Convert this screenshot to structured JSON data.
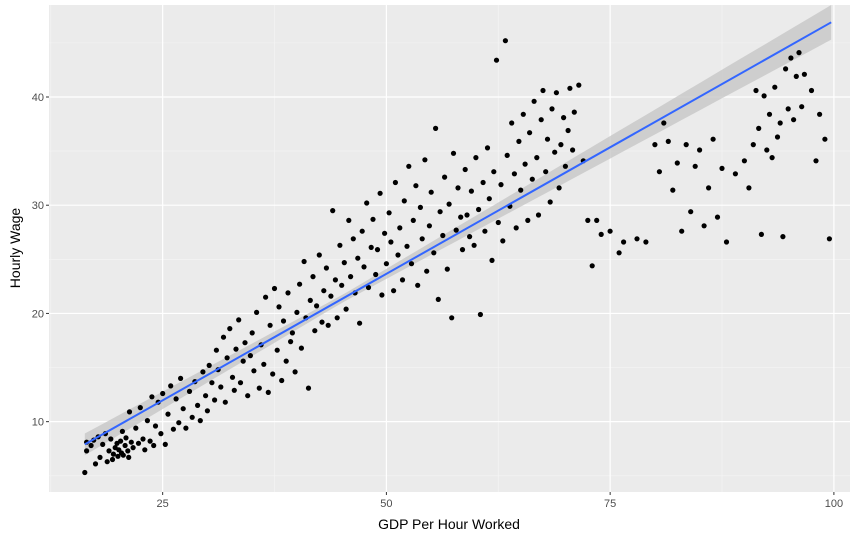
{
  "chart_data": {
    "type": "scatter",
    "title": "",
    "xlabel": "GDP Per Hour Worked",
    "ylabel": "Hourly Wage",
    "xlim": [
      12.3,
      101.8
    ],
    "ylim": [
      3.5,
      48.5
    ],
    "x_ticks": [
      25,
      50,
      75,
      100
    ],
    "x_tick_labels": [
      "25",
      "50",
      "75",
      "100"
    ],
    "y_ticks": [
      10,
      20,
      30,
      40
    ],
    "y_tick_labels": [
      "10",
      "20",
      "30",
      "40"
    ],
    "grid": true,
    "legend": "none",
    "trendline": {
      "method": "linear",
      "x": [
        16.3,
        99.7
      ],
      "y": [
        7.9,
        46.9
      ],
      "confidence_band": true
    },
    "points": [
      [
        16.3,
        5.3
      ],
      [
        16.5,
        7.3
      ],
      [
        16.5,
        8.1
      ],
      [
        17.0,
        7.8
      ],
      [
        17.3,
        8.3
      ],
      [
        17.5,
        6.1
      ],
      [
        17.8,
        8.6
      ],
      [
        18.0,
        6.7
      ],
      [
        18.3,
        7.9
      ],
      [
        18.6,
        8.9
      ],
      [
        18.8,
        6.3
      ],
      [
        19.0,
        7.3
      ],
      [
        19.2,
        8.4
      ],
      [
        19.4,
        6.5
      ],
      [
        19.5,
        7.0
      ],
      [
        19.7,
        7.6
      ],
      [
        19.9,
        8.0
      ],
      [
        20.0,
        6.8
      ],
      [
        20.1,
        7.4
      ],
      [
        20.3,
        8.2
      ],
      [
        20.4,
        7.1
      ],
      [
        20.5,
        9.1
      ],
      [
        20.6,
        6.9
      ],
      [
        20.8,
        7.8
      ],
      [
        20.9,
        8.5
      ],
      [
        21.1,
        7.3
      ],
      [
        21.2,
        6.7
      ],
      [
        21.3,
        10.9
      ],
      [
        21.5,
        8.1
      ],
      [
        21.7,
        7.6
      ],
      [
        22.0,
        9.4
      ],
      [
        22.3,
        8.0
      ],
      [
        22.5,
        11.3
      ],
      [
        22.8,
        8.4
      ],
      [
        23.0,
        7.4
      ],
      [
        23.3,
        10.1
      ],
      [
        23.6,
        8.2
      ],
      [
        23.8,
        12.3
      ],
      [
        24.0,
        7.8
      ],
      [
        24.2,
        9.6
      ],
      [
        24.5,
        11.8
      ],
      [
        24.8,
        8.9
      ],
      [
        25.0,
        12.6
      ],
      [
        25.3,
        7.9
      ],
      [
        25.6,
        10.7
      ],
      [
        25.9,
        13.3
      ],
      [
        26.2,
        9.3
      ],
      [
        26.5,
        12.1
      ],
      [
        26.8,
        9.9
      ],
      [
        27.0,
        14.0
      ],
      [
        27.3,
        11.2
      ],
      [
        27.6,
        9.4
      ],
      [
        28.0,
        12.8
      ],
      [
        28.3,
        10.4
      ],
      [
        28.6,
        13.7
      ],
      [
        28.9,
        11.5
      ],
      [
        29.2,
        10.1
      ],
      [
        29.5,
        14.6
      ],
      [
        29.8,
        12.4
      ],
      [
        30.0,
        11.0
      ],
      [
        30.2,
        15.2
      ],
      [
        30.5,
        13.6
      ],
      [
        30.8,
        12.0
      ],
      [
        31.0,
        16.6
      ],
      [
        31.2,
        14.8
      ],
      [
        31.5,
        13.2
      ],
      [
        31.8,
        17.8
      ],
      [
        32.0,
        11.8
      ],
      [
        32.2,
        15.9
      ],
      [
        32.5,
        18.6
      ],
      [
        32.8,
        14.1
      ],
      [
        33.0,
        12.9
      ],
      [
        33.2,
        16.7
      ],
      [
        33.5,
        19.4
      ],
      [
        33.7,
        13.6
      ],
      [
        34.0,
        15.6
      ],
      [
        34.2,
        17.3
      ],
      [
        34.5,
        12.4
      ],
      [
        34.8,
        16.1
      ],
      [
        35.0,
        18.2
      ],
      [
        35.2,
        14.7
      ],
      [
        35.5,
        20.1
      ],
      [
        35.8,
        13.1
      ],
      [
        36.0,
        17.1
      ],
      [
        36.3,
        15.3
      ],
      [
        36.5,
        21.5
      ],
      [
        36.8,
        12.7
      ],
      [
        37.0,
        18.9
      ],
      [
        37.3,
        14.4
      ],
      [
        37.5,
        22.3
      ],
      [
        37.8,
        16.6
      ],
      [
        38.0,
        20.6
      ],
      [
        38.3,
        13.8
      ],
      [
        38.5,
        19.3
      ],
      [
        38.8,
        15.6
      ],
      [
        39.0,
        21.9
      ],
      [
        39.3,
        17.4
      ],
      [
        39.5,
        18.2
      ],
      [
        39.8,
        14.6
      ],
      [
        40.0,
        20.1
      ],
      [
        40.3,
        22.7
      ],
      [
        40.5,
        16.8
      ],
      [
        40.8,
        24.8
      ],
      [
        41.0,
        19.6
      ],
      [
        41.3,
        13.1
      ],
      [
        41.5,
        21.2
      ],
      [
        41.8,
        23.4
      ],
      [
        42.0,
        18.4
      ],
      [
        42.2,
        20.7
      ],
      [
        42.5,
        25.4
      ],
      [
        42.8,
        19.2
      ],
      [
        43.0,
        22.1
      ],
      [
        43.3,
        24.2
      ],
      [
        43.5,
        18.9
      ],
      [
        43.8,
        21.6
      ],
      [
        44.0,
        29.5
      ],
      [
        44.3,
        23.1
      ],
      [
        44.5,
        19.6
      ],
      [
        44.8,
        26.3
      ],
      [
        45.0,
        22.6
      ],
      [
        45.3,
        24.7
      ],
      [
        45.5,
        20.4
      ],
      [
        45.8,
        28.6
      ],
      [
        46.0,
        23.4
      ],
      [
        46.3,
        26.9
      ],
      [
        46.5,
        21.9
      ],
      [
        46.8,
        25.1
      ],
      [
        47.0,
        19.1
      ],
      [
        47.3,
        27.6
      ],
      [
        47.5,
        24.3
      ],
      [
        47.8,
        30.2
      ],
      [
        48.0,
        22.4
      ],
      [
        48.3,
        26.1
      ],
      [
        48.5,
        28.7
      ],
      [
        48.8,
        23.6
      ],
      [
        49.0,
        25.9
      ],
      [
        49.3,
        31.1
      ],
      [
        49.5,
        21.7
      ],
      [
        49.8,
        27.4
      ],
      [
        50.0,
        24.6
      ],
      [
        50.3,
        29.3
      ],
      [
        50.5,
        26.6
      ],
      [
        50.8,
        22.1
      ],
      [
        51.0,
        32.1
      ],
      [
        51.3,
        25.4
      ],
      [
        51.5,
        27.9
      ],
      [
        51.8,
        23.1
      ],
      [
        52.0,
        30.4
      ],
      [
        52.3,
        26.2
      ],
      [
        52.5,
        33.6
      ],
      [
        52.8,
        24.6
      ],
      [
        53.0,
        28.6
      ],
      [
        53.3,
        31.8
      ],
      [
        53.5,
        22.6
      ],
      [
        53.8,
        29.8
      ],
      [
        54.0,
        26.9
      ],
      [
        54.3,
        34.2
      ],
      [
        54.5,
        23.9
      ],
      [
        54.8,
        28.1
      ],
      [
        55.0,
        31.2
      ],
      [
        55.3,
        25.6
      ],
      [
        55.5,
        37.1
      ],
      [
        55.8,
        21.3
      ],
      [
        56.0,
        29.4
      ],
      [
        56.3,
        27.2
      ],
      [
        56.5,
        32.6
      ],
      [
        56.8,
        24.1
      ],
      [
        57.0,
        30.1
      ],
      [
        57.3,
        19.6
      ],
      [
        57.5,
        34.8
      ],
      [
        57.8,
        27.7
      ],
      [
        58.0,
        31.6
      ],
      [
        58.3,
        28.9
      ],
      [
        58.5,
        25.9
      ],
      [
        58.8,
        33.3
      ],
      [
        59.0,
        29.1
      ],
      [
        59.3,
        27.1
      ],
      [
        59.5,
        31.3
      ],
      [
        59.8,
        26.3
      ],
      [
        60.0,
        34.4
      ],
      [
        60.3,
        29.6
      ],
      [
        60.5,
        19.9
      ],
      [
        60.8,
        32.1
      ],
      [
        61.0,
        27.6
      ],
      [
        61.3,
        35.3
      ],
      [
        61.5,
        30.6
      ],
      [
        61.8,
        24.9
      ],
      [
        62.0,
        33.1
      ],
      [
        62.3,
        43.4
      ],
      [
        62.5,
        28.4
      ],
      [
        62.8,
        31.9
      ],
      [
        63.0,
        26.7
      ],
      [
        63.3,
        45.2
      ],
      [
        63.5,
        34.6
      ],
      [
        63.8,
        29.9
      ],
      [
        64.0,
        37.6
      ],
      [
        64.3,
        32.9
      ],
      [
        64.5,
        27.9
      ],
      [
        64.8,
        35.9
      ],
      [
        65.0,
        31.4
      ],
      [
        65.3,
        38.4
      ],
      [
        65.5,
        33.8
      ],
      [
        65.8,
        28.6
      ],
      [
        66.0,
        36.7
      ],
      [
        66.3,
        32.4
      ],
      [
        66.5,
        39.6
      ],
      [
        66.8,
        34.4
      ],
      [
        67.0,
        29.1
      ],
      [
        67.3,
        37.9
      ],
      [
        67.5,
        40.6
      ],
      [
        67.8,
        33.1
      ],
      [
        68.0,
        36.1
      ],
      [
        68.3,
        30.3
      ],
      [
        68.5,
        38.9
      ],
      [
        68.8,
        34.9
      ],
      [
        69.0,
        40.4
      ],
      [
        69.3,
        31.6
      ],
      [
        69.5,
        35.6
      ],
      [
        69.8,
        38.1
      ],
      [
        70.0,
        33.6
      ],
      [
        70.3,
        36.9
      ],
      [
        70.5,
        40.8
      ],
      [
        70.8,
        35.1
      ],
      [
        71.0,
        38.6
      ],
      [
        71.5,
        41.1
      ],
      [
        72.0,
        34.1
      ],
      [
        72.5,
        28.6
      ],
      [
        73.0,
        24.4
      ],
      [
        73.5,
        28.6
      ],
      [
        74.0,
        27.3
      ],
      [
        75.0,
        27.6
      ],
      [
        76.0,
        25.6
      ],
      [
        76.5,
        26.6
      ],
      [
        78.0,
        26.9
      ],
      [
        79.0,
        26.6
      ],
      [
        80.0,
        35.6
      ],
      [
        80.5,
        33.1
      ],
      [
        81.0,
        37.6
      ],
      [
        81.5,
        35.9
      ],
      [
        82.0,
        31.4
      ],
      [
        82.5,
        33.9
      ],
      [
        83.0,
        27.6
      ],
      [
        83.5,
        35.6
      ],
      [
        84.0,
        29.4
      ],
      [
        84.5,
        33.6
      ],
      [
        85.0,
        35.1
      ],
      [
        85.5,
        28.1
      ],
      [
        86.0,
        31.6
      ],
      [
        86.5,
        36.1
      ],
      [
        87.0,
        28.9
      ],
      [
        87.5,
        33.4
      ],
      [
        88.0,
        26.6
      ],
      [
        89.0,
        32.9
      ],
      [
        90.0,
        34.1
      ],
      [
        90.5,
        31.6
      ],
      [
        91.0,
        35.6
      ],
      [
        91.3,
        40.6
      ],
      [
        91.6,
        37.1
      ],
      [
        91.9,
        27.3
      ],
      [
        92.2,
        40.1
      ],
      [
        92.5,
        35.1
      ],
      [
        92.8,
        38.4
      ],
      [
        93.1,
        34.4
      ],
      [
        93.4,
        40.9
      ],
      [
        93.7,
        36.3
      ],
      [
        94.0,
        37.6
      ],
      [
        94.3,
        27.1
      ],
      [
        94.6,
        42.6
      ],
      [
        94.9,
        38.9
      ],
      [
        95.2,
        43.6
      ],
      [
        95.5,
        37.9
      ],
      [
        95.8,
        41.9
      ],
      [
        96.1,
        44.1
      ],
      [
        96.4,
        39.1
      ],
      [
        96.7,
        42.1
      ],
      [
        97.5,
        40.6
      ],
      [
        98.0,
        34.1
      ],
      [
        98.4,
        38.4
      ],
      [
        99.0,
        36.1
      ],
      [
        99.5,
        26.9
      ]
    ]
  }
}
